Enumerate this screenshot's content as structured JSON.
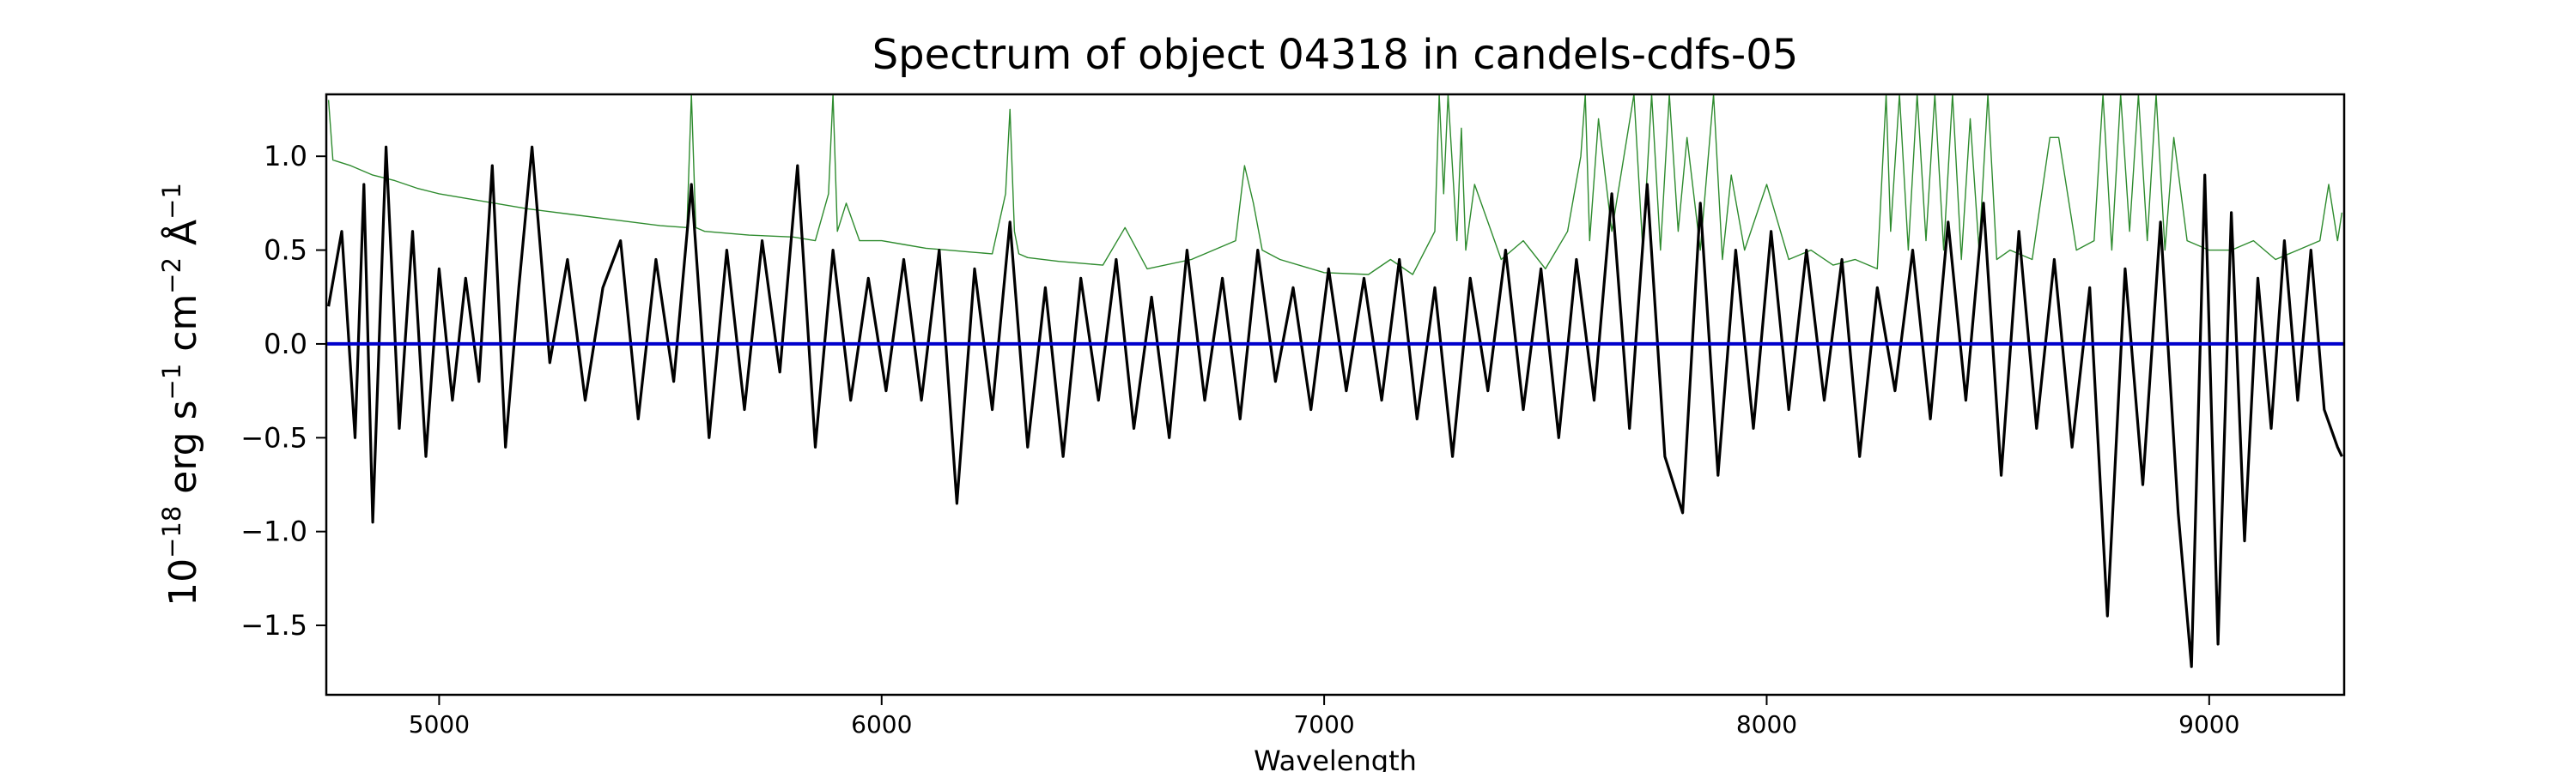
{
  "chart_data": {
    "type": "line",
    "title": "Spectrum of object 04318 in candels-cdfs-05",
    "xlabel": "Wavelength",
    "ylabel_parts": {
      "base": "10",
      "exp1": "−18",
      "mid1": " erg s",
      "exp2": "−1",
      "mid2": " cm",
      "exp3": "−2",
      "mid3": " Å",
      "exp4": "−1"
    },
    "xlim": [
      4745,
      9305
    ],
    "ylim": [
      -1.87,
      1.33
    ],
    "xticks": [
      5000,
      6000,
      7000,
      8000,
      9000
    ],
    "xtick_labels": [
      "5000",
      "6000",
      "7000",
      "8000",
      "9000"
    ],
    "yticks": [
      1.0,
      0.5,
      0.0,
      -0.5,
      -1.0,
      -1.5
    ],
    "ytick_labels": [
      "1.0",
      "0.5",
      "0.0",
      "−0.5",
      "−1.0",
      "−1.5"
    ],
    "grid": false,
    "legend": "none",
    "series": [
      {
        "role": "flux",
        "color": "#000000",
        "x": [
          4750,
          4780,
          4810,
          4830,
          4850,
          4880,
          4910,
          4940,
          4970,
          5000,
          5030,
          5060,
          5090,
          5120,
          5150,
          5180,
          5210,
          5250,
          5290,
          5330,
          5370,
          5410,
          5450,
          5490,
          5530,
          5570,
          5610,
          5650,
          5690,
          5730,
          5770,
          5810,
          5850,
          5890,
          5930,
          5970,
          6010,
          6050,
          6090,
          6130,
          6170,
          6210,
          6250,
          6290,
          6330,
          6370,
          6410,
          6450,
          6490,
          6530,
          6570,
          6610,
          6650,
          6690,
          6730,
          6770,
          6810,
          6850,
          6890,
          6930,
          6970,
          7010,
          7050,
          7090,
          7130,
          7170,
          7210,
          7250,
          7290,
          7330,
          7370,
          7410,
          7450,
          7490,
          7530,
          7570,
          7610,
          7650,
          7690,
          7730,
          7770,
          7810,
          7850,
          7890,
          7930,
          7970,
          8010,
          8050,
          8090,
          8130,
          8170,
          8210,
          8250,
          8290,
          8330,
          8370,
          8410,
          8450,
          8490,
          8530,
          8570,
          8610,
          8650,
          8690,
          8730,
          8770,
          8810,
          8850,
          8890,
          8930,
          8960,
          8990,
          9020,
          9050,
          9080,
          9110,
          9140,
          9170,
          9200,
          9230,
          9260,
          9290,
          9300
        ],
        "y": [
          0.2,
          0.6,
          -0.5,
          0.85,
          -0.95,
          1.05,
          -0.45,
          0.6,
          -0.6,
          0.4,
          -0.3,
          0.35,
          -0.2,
          0.95,
          -0.55,
          0.3,
          1.05,
          -0.1,
          0.45,
          -0.3,
          0.3,
          0.55,
          -0.4,
          0.45,
          -0.2,
          0.85,
          -0.5,
          0.5,
          -0.35,
          0.55,
          -0.15,
          0.95,
          -0.55,
          0.5,
          -0.3,
          0.35,
          -0.25,
          0.45,
          -0.3,
          0.5,
          -0.85,
          0.4,
          -0.35,
          0.65,
          -0.55,
          0.3,
          -0.6,
          0.35,
          -0.3,
          0.45,
          -0.45,
          0.25,
          -0.5,
          0.5,
          -0.3,
          0.35,
          -0.4,
          0.5,
          -0.2,
          0.3,
          -0.35,
          0.4,
          -0.25,
          0.35,
          -0.3,
          0.45,
          -0.4,
          0.3,
          -0.6,
          0.35,
          -0.25,
          0.5,
          -0.35,
          0.4,
          -0.5,
          0.45,
          -0.3,
          0.8,
          -0.45,
          0.85,
          -0.6,
          -0.9,
          0.75,
          -0.7,
          0.5,
          -0.45,
          0.6,
          -0.35,
          0.5,
          -0.3,
          0.45,
          -0.6,
          0.3,
          -0.25,
          0.5,
          -0.4,
          0.65,
          -0.3,
          0.75,
          -0.7,
          0.6,
          -0.45,
          0.45,
          -0.55,
          0.3,
          -1.45,
          0.4,
          -0.75,
          0.65,
          -0.9,
          -1.72,
          0.9,
          -1.6,
          0.7,
          -1.05,
          0.35,
          -0.45,
          0.55,
          -0.3,
          0.5,
          -0.35,
          -0.55,
          -0.6
        ]
      },
      {
        "role": "error",
        "color": "#2e8b2e",
        "x": [
          4750,
          4760,
          4800,
          4850,
          4900,
          4950,
          5000,
          5100,
          5200,
          5300,
          5400,
          5500,
          5560,
          5570,
          5580,
          5590,
          5600,
          5700,
          5800,
          5850,
          5880,
          5890,
          5900,
          5920,
          5950,
          6000,
          6050,
          6100,
          6150,
          6200,
          6250,
          6280,
          6290,
          6300,
          6310,
          6330,
          6400,
          6500,
          6550,
          6600,
          6700,
          6800,
          6820,
          6840,
          6860,
          6900,
          7000,
          7100,
          7150,
          7200,
          7250,
          7260,
          7270,
          7280,
          7300,
          7310,
          7320,
          7340,
          7400,
          7450,
          7500,
          7550,
          7580,
          7590,
          7600,
          7620,
          7650,
          7700,
          7720,
          7740,
          7760,
          7780,
          7800,
          7820,
          7850,
          7880,
          7900,
          7920,
          7950,
          8000,
          8050,
          8100,
          8150,
          8200,
          8250,
          8270,
          8280,
          8300,
          8320,
          8340,
          8360,
          8380,
          8400,
          8420,
          8440,
          8460,
          8480,
          8500,
          8520,
          8550,
          8600,
          8640,
          8660,
          8700,
          8740,
          8760,
          8780,
          8800,
          8820,
          8840,
          8860,
          8880,
          8900,
          8920,
          8950,
          9000,
          9050,
          9100,
          9150,
          9200,
          9250,
          9270,
          9290,
          9300
        ],
        "y": [
          1.3,
          0.98,
          0.95,
          0.9,
          0.87,
          0.83,
          0.8,
          0.76,
          0.72,
          0.69,
          0.66,
          0.63,
          0.62,
          1.33,
          0.62,
          0.61,
          0.6,
          0.58,
          0.57,
          0.55,
          0.8,
          1.33,
          0.6,
          0.75,
          0.55,
          0.55,
          0.53,
          0.51,
          0.5,
          0.49,
          0.48,
          0.8,
          1.25,
          0.6,
          0.48,
          0.46,
          0.44,
          0.42,
          0.62,
          0.4,
          0.45,
          0.55,
          0.95,
          0.75,
          0.5,
          0.45,
          0.38,
          0.37,
          0.45,
          0.37,
          0.6,
          1.33,
          0.8,
          1.33,
          0.55,
          1.15,
          0.5,
          0.85,
          0.45,
          0.55,
          0.4,
          0.6,
          1.0,
          1.33,
          0.55,
          1.2,
          0.6,
          1.33,
          0.5,
          1.33,
          0.5,
          1.33,
          0.6,
          1.1,
          0.5,
          1.33,
          0.45,
          0.9,
          0.5,
          0.85,
          0.45,
          0.5,
          0.42,
          0.45,
          0.4,
          1.33,
          0.6,
          1.33,
          0.5,
          1.33,
          0.55,
          1.33,
          0.5,
          1.33,
          0.45,
          1.2,
          0.5,
          1.33,
          0.45,
          0.5,
          0.45,
          1.1,
          1.1,
          0.5,
          0.55,
          1.33,
          0.5,
          1.33,
          0.6,
          1.33,
          0.55,
          1.33,
          0.5,
          1.1,
          0.55,
          0.5,
          0.5,
          0.55,
          0.45,
          0.5,
          0.55,
          0.85,
          0.55,
          0.7
        ]
      },
      {
        "role": "zero",
        "color": "#0000cc",
        "x": [
          4745,
          9305
        ],
        "y": [
          0,
          0
        ]
      }
    ]
  }
}
